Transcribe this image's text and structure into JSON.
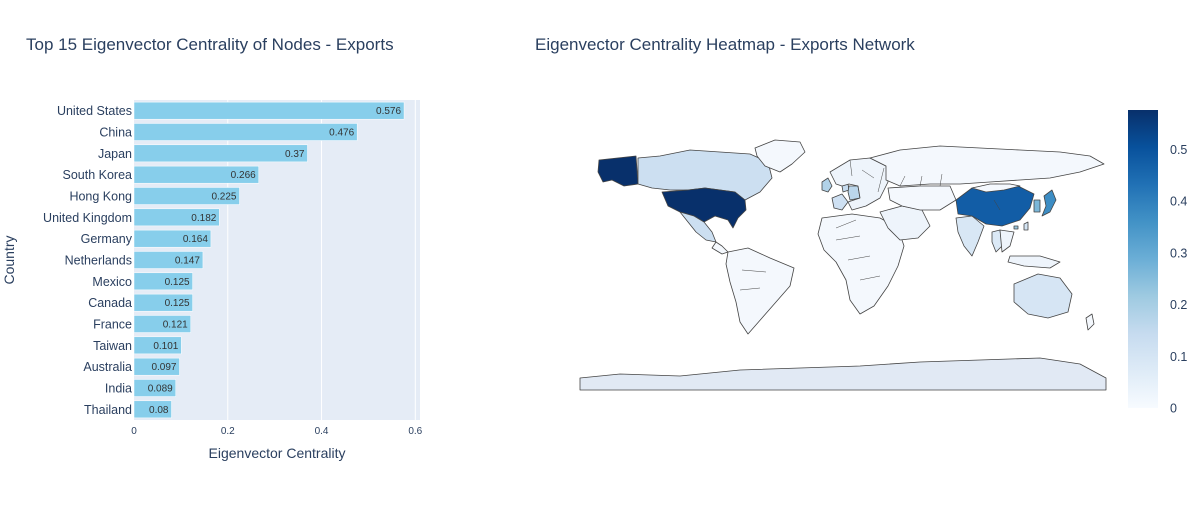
{
  "chart_data": [
    {
      "type": "bar",
      "orientation": "horizontal",
      "title": "Top 15 Eigenvector Centrality of Nodes - Exports",
      "xlabel": "Eigenvector Centrality",
      "ylabel": "Country",
      "xlim": [
        0,
        0.61
      ],
      "xticks": [
        0,
        0.2,
        0.4,
        0.6
      ],
      "xtick_labels": [
        "0",
        "0.2",
        "0.4",
        "0.6"
      ],
      "grid": true,
      "bar_color": "#87ceeb",
      "plot_bg": "#e5ecf6",
      "categories": [
        "United States",
        "China",
        "Japan",
        "South Korea",
        "Hong Kong",
        "United Kingdom",
        "Germany",
        "Netherlands",
        "Mexico",
        "Canada",
        "France",
        "Taiwan",
        "Australia",
        "India",
        "Thailand"
      ],
      "values": [
        0.576,
        0.476,
        0.37,
        0.266,
        0.225,
        0.182,
        0.164,
        0.147,
        0.125,
        0.125,
        0.121,
        0.101,
        0.097,
        0.089,
        0.08
      ],
      "value_labels": [
        "0.576",
        "0.476",
        "0.37",
        "0.266",
        "0.225",
        "0.182",
        "0.164",
        "0.147",
        "0.125",
        "0.125",
        "0.121",
        "0.101",
        "0.097",
        "0.089",
        "0.08"
      ]
    },
    {
      "type": "heatmap",
      "subtype": "choropleth",
      "title": "Eigenvector Centrality Heatmap - Exports Network",
      "colorscale": "Blues",
      "colorscale_stops": [
        "#f7fbff",
        "#deebf7",
        "#c6dbef",
        "#9ecae1",
        "#6baed6",
        "#4292c6",
        "#2171b5",
        "#08519c",
        "#08306b"
      ],
      "colorbar_range": [
        0,
        0.576
      ],
      "colorbar_ticks": [
        0,
        0.1,
        0.2,
        0.3,
        0.4,
        0.5
      ],
      "colorbar_tick_labels": [
        "0",
        "0.1",
        "0.2",
        "0.3",
        "0.4",
        "0.5"
      ],
      "regions": [
        {
          "name": "United States",
          "value": 0.576
        },
        {
          "name": "China",
          "value": 0.476
        },
        {
          "name": "Japan",
          "value": 0.37
        },
        {
          "name": "South Korea",
          "value": 0.266
        },
        {
          "name": "Hong Kong",
          "value": 0.225
        },
        {
          "name": "United Kingdom",
          "value": 0.182
        },
        {
          "name": "Germany",
          "value": 0.164
        },
        {
          "name": "Netherlands",
          "value": 0.147
        },
        {
          "name": "Mexico",
          "value": 0.125
        },
        {
          "name": "Canada",
          "value": 0.125
        },
        {
          "name": "France",
          "value": 0.121
        },
        {
          "name": "Taiwan",
          "value": 0.101
        },
        {
          "name": "Australia",
          "value": 0.097
        },
        {
          "name": "India",
          "value": 0.089
        },
        {
          "name": "Thailand",
          "value": 0.08
        }
      ]
    }
  ]
}
